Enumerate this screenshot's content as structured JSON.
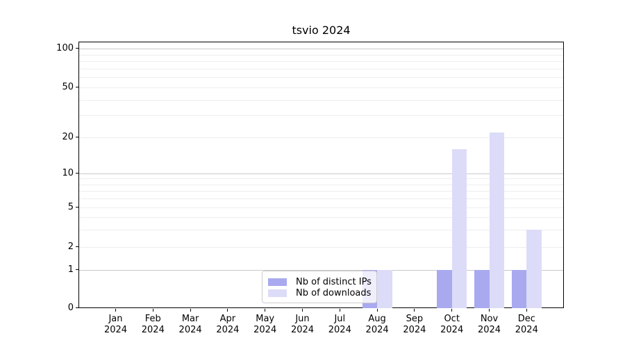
{
  "chart_data": {
    "type": "bar",
    "title": "tsvio 2024",
    "categories": [
      "Jan 2024",
      "Feb 2024",
      "Mar 2024",
      "Apr 2024",
      "May 2024",
      "Jun 2024",
      "Jul 2024",
      "Aug 2024",
      "Sep 2024",
      "Oct 2024",
      "Nov 2024",
      "Dec 2024"
    ],
    "series": [
      {
        "name": "Nb of distinct IPs",
        "color": "#a9a9f0",
        "values": [
          0,
          0,
          0,
          0,
          0,
          0,
          0,
          1,
          0,
          1,
          1,
          1
        ]
      },
      {
        "name": "Nb of downloads",
        "color": "#dcdcf8",
        "values": [
          0,
          0,
          0,
          0,
          0,
          0,
          0,
          1,
          0,
          16,
          22,
          3
        ]
      }
    ],
    "y_ticks": [
      0,
      1,
      2,
      5,
      10,
      20,
      50,
      100
    ],
    "ylim": [
      0,
      100
    ],
    "axis_scale": "symlog",
    "grid": "horizontal",
    "minor_gridline_values": [
      2,
      3,
      4,
      5,
      6,
      7,
      8,
      9,
      20,
      30,
      40,
      50,
      60,
      70,
      80,
      90
    ],
    "major_gridline_values": [
      1,
      10,
      100
    ],
    "legend_position": "lower center"
  }
}
